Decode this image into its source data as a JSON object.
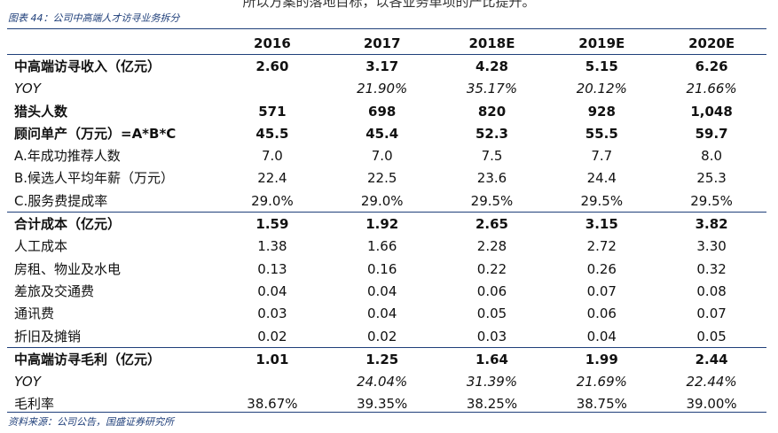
{
  "page": {
    "cut_header": "所以方案的落地目标，以各业务单项的产比提升。",
    "figure_title": "图表 44：公司中高端人才访寻业务拆分",
    "source": "资料来源：公司公告，国盛证券研究所"
  },
  "table": {
    "columns": [
      "",
      "2016",
      "2017",
      "2018E",
      "2019E",
      "2020E"
    ],
    "rows": [
      {
        "label": "中高端访寻收入（亿元）",
        "values": [
          "2.60",
          "3.17",
          "4.28",
          "5.15",
          "6.26"
        ]
      },
      {
        "label": "YOY",
        "values": [
          "",
          "21.90%",
          "35.17%",
          "20.12%",
          "21.66%"
        ]
      },
      {
        "label": "猎头人数",
        "values": [
          "571",
          "698",
          "820",
          "928",
          "1,048"
        ]
      },
      {
        "label": "顾问单产（万元）=A*B*C",
        "values": [
          "45.5",
          "45.4",
          "52.3",
          "55.5",
          "59.7"
        ]
      },
      {
        "label": "A.年成功推荐人数",
        "values": [
          "7.0",
          "7.0",
          "7.5",
          "7.7",
          "8.0"
        ]
      },
      {
        "label": "B.候选人平均年薪（万元）",
        "values": [
          "22.4",
          "22.5",
          "23.6",
          "24.4",
          "25.3"
        ]
      },
      {
        "label": "C.服务费提成率",
        "values": [
          "29.0%",
          "29.0%",
          "29.5%",
          "29.5%",
          "29.5%"
        ]
      },
      {
        "label": "合计成本（亿元）",
        "values": [
          "1.59",
          "1.92",
          "2.65",
          "3.15",
          "3.82"
        ]
      },
      {
        "label": "人工成本",
        "values": [
          "1.38",
          "1.66",
          "2.28",
          "2.72",
          "3.30"
        ]
      },
      {
        "label": "房租、物业及水电",
        "values": [
          "0.13",
          "0.16",
          "0.22",
          "0.26",
          "0.32"
        ]
      },
      {
        "label": "差旅及交通费",
        "values": [
          "0.04",
          "0.04",
          "0.06",
          "0.07",
          "0.08"
        ]
      },
      {
        "label": "通讯费",
        "values": [
          "0.03",
          "0.04",
          "0.05",
          "0.06",
          "0.07"
        ]
      },
      {
        "label": "折旧及摊销",
        "values": [
          "0.02",
          "0.02",
          "0.03",
          "0.04",
          "0.05"
        ]
      },
      {
        "label": "中高端访寻毛利（亿元）",
        "values": [
          "1.01",
          "1.25",
          "1.64",
          "1.99",
          "2.44"
        ]
      },
      {
        "label": "YOY",
        "values": [
          "",
          "24.04%",
          "31.39%",
          "21.69%",
          "22.44%"
        ]
      },
      {
        "label": "毛利率",
        "values": [
          "38.67%",
          "39.35%",
          "38.25%",
          "38.75%",
          "39.00%"
        ]
      }
    ]
  }
}
